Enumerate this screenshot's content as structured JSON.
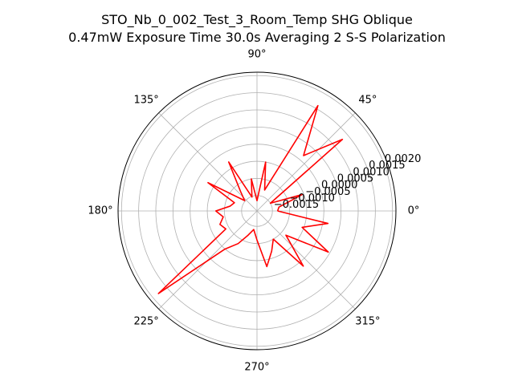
{
  "title_lines": [
    "STO_Nb_0_002_Test_3_Room_Temp SHG Oblique",
    "0.47mW Exposure Time 30.0s Averaging 2 S-S  Polarization"
  ],
  "colors": {
    "series": "#ff0000",
    "grid": "#b0b0b0",
    "frame": "#000000"
  },
  "chart_data": {
    "type": "polar-line",
    "title": "STO_Nb_0_002_Test_3_Room_Temp SHG Oblique\n0.47mW Exposure Time 30.0s Averaging 2 S-S  Polarization",
    "theta_unit": "degrees",
    "theta_ticks": [
      "0°",
      "45°",
      "90°",
      "135°",
      "180°",
      "225°",
      "270°",
      "315°"
    ],
    "theta_tick_values": [
      0,
      45,
      90,
      135,
      180,
      225,
      270,
      315
    ],
    "r_ticks": [
      "−0.0015",
      "−0.0010",
      "−0.0005",
      "0.0000",
      "0.0005",
      "0.0010",
      "0.0015",
      "0.0020"
    ],
    "r_tick_values": [
      -0.0015,
      -0.001,
      -0.0005,
      0,
      0.0005,
      0.001,
      0.0015,
      0.002
    ],
    "rlim": [
      -0.00195,
      0.0021
    ],
    "r_label_angle": 22.5,
    "grid": true,
    "series": [
      {
        "theta": [
          0,
          10,
          20,
          30,
          40,
          50,
          60,
          70,
          80,
          90,
          100,
          110,
          120,
          130,
          140,
          150,
          160,
          170,
          180,
          190,
          200,
          210,
          220,
          230,
          240,
          250,
          260,
          270,
          280,
          290,
          300,
          310,
          320,
          330,
          340,
          350,
          360
        ],
        "r": [
          -0.00135,
          -0.0013,
          -0.00055,
          -0.0015,
          0.0013,
          0.00016,
          0.0016,
          -0.0013,
          -0.0005,
          -0.00165,
          -0.001,
          -0.00152,
          -0.0003,
          -0.0012,
          -0.00148,
          -0.0003,
          -0.00125,
          -0.00115,
          -0.00075,
          -0.00095,
          -0.0008,
          -0.0009,
          0.0018,
          -0.0005,
          -0.00085,
          -0.0012,
          -0.0014,
          -0.0011,
          -0.0003,
          -0.0007,
          -0.001,
          0.00015,
          -0.00085,
          0.00045,
          -0.00055,
          0.00015,
          -0.00135
        ],
        "color": "#ff0000"
      }
    ]
  }
}
